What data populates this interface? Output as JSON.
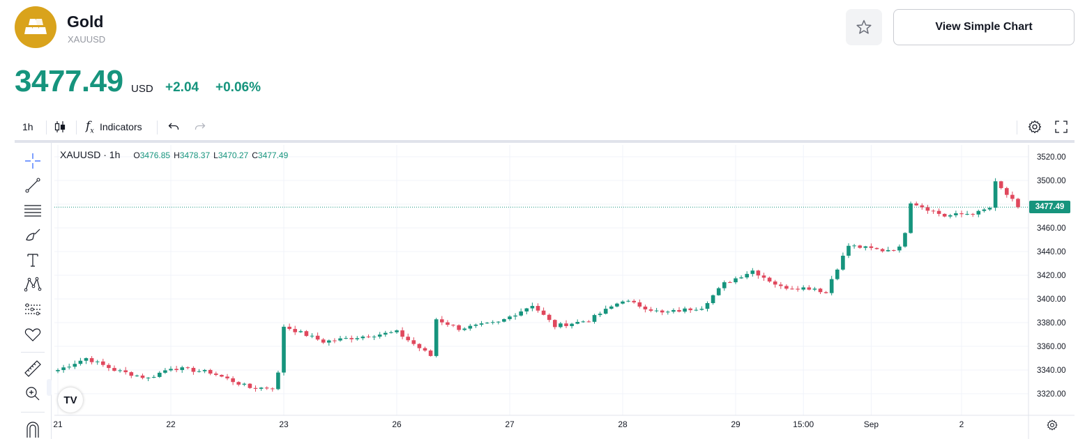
{
  "header": {
    "title": "Gold",
    "symbol": "XAUUSD",
    "view_simple_label": "View Simple Chart",
    "icons": {
      "logo": "gold-bars-icon",
      "favorite": "star-icon"
    }
  },
  "quote": {
    "price": "3477.49",
    "currency": "USD",
    "change": "+2.04",
    "change_pct": "+0.06%",
    "color": "#16947d"
  },
  "toolbar": {
    "interval": "1h",
    "indicators_label": "Indicators",
    "icons": [
      "candles-icon",
      "fx-icon",
      "undo-icon",
      "redo-icon",
      "settings-icon",
      "fullscreen-icon"
    ]
  },
  "drawing_tools": [
    "crosshair-icon",
    "trend-line-icon",
    "fib-retracement-icon",
    "brush-icon",
    "text-icon",
    "pattern-icon",
    "prediction-icon",
    "heart-icon",
    "ruler-icon",
    "zoom-in-icon",
    "magnet-icon"
  ],
  "legend": {
    "symbol_interval": "XAUUSD · 1h",
    "o_label": "O",
    "open": "3476.85",
    "h_label": "H",
    "high": "3478.37",
    "l_label": "L",
    "low": "3470.27",
    "c_label": "C",
    "close": "3477.49"
  },
  "price_tag": "3477.49",
  "watermark": "TV",
  "chart_data": {
    "type": "candlestick",
    "up_color": "#16947d",
    "down_color": "#e0485d",
    "last_price": 3477.49,
    "y_ticks": [
      "3520.00",
      "3500.00",
      "3480.00",
      "3460.00",
      "3440.00",
      "3420.00",
      "3400.00",
      "3380.00",
      "3360.00",
      "3340.00",
      "3320.00"
    ],
    "ylim": [
      3311,
      3524
    ],
    "x_ticks": [
      "21",
      "22",
      "23",
      "26",
      "27",
      "28",
      "29",
      "15:00",
      "Sep",
      "2"
    ],
    "x_tick_positions": [
      0,
      20,
      40,
      60,
      80,
      100,
      120,
      132,
      144,
      160
    ],
    "bar_count": 171,
    "anchors": [
      [
        0,
        3340
      ],
      [
        5,
        3350
      ],
      [
        10,
        3340
      ],
      [
        16,
        3333
      ],
      [
        20,
        3342
      ],
      [
        27,
        3338
      ],
      [
        34,
        3325
      ],
      [
        38,
        3325
      ],
      [
        39,
        3337
      ],
      [
        40,
        3377
      ],
      [
        47,
        3364
      ],
      [
        55,
        3369
      ],
      [
        60,
        3372
      ],
      [
        66,
        3352
      ],
      [
        67,
        3383
      ],
      [
        71,
        3375
      ],
      [
        78,
        3380
      ],
      [
        84,
        3395
      ],
      [
        88,
        3377
      ],
      [
        94,
        3382
      ],
      [
        100,
        3399
      ],
      [
        107,
        3388
      ],
      [
        114,
        3393
      ],
      [
        118,
        3413
      ],
      [
        123,
        3424
      ],
      [
        128,
        3410
      ],
      [
        134,
        3409
      ],
      [
        136,
        3405
      ],
      [
        137,
        3417
      ],
      [
        140,
        3445
      ],
      [
        146,
        3441
      ],
      [
        149,
        3443
      ],
      [
        150,
        3457
      ],
      [
        151,
        3482
      ],
      [
        157,
        3470
      ],
      [
        163,
        3473
      ],
      [
        165,
        3477
      ],
      [
        166,
        3498
      ],
      [
        170,
        3478
      ]
    ],
    "grid": true
  }
}
